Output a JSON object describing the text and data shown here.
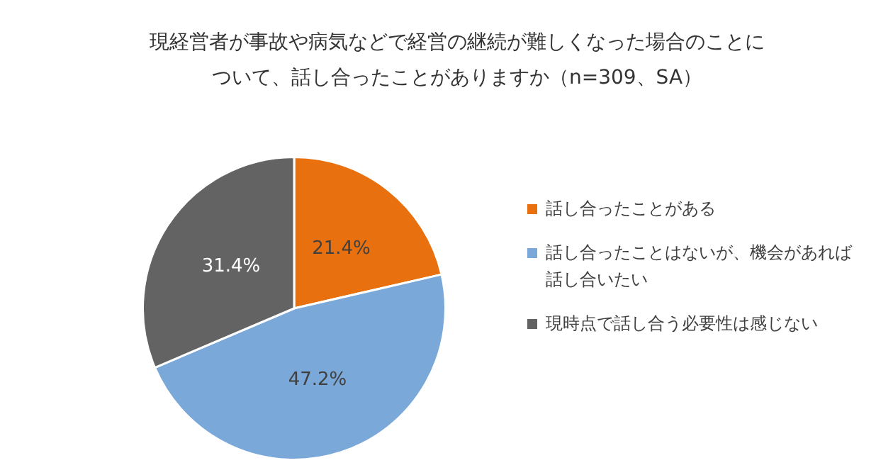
{
  "chart_data": {
    "type": "pie",
    "title": "現経営者が事故や病気などで経営の継続が難しくなった場合のことについて、話し合ったことがありますか（n=309、SA）",
    "categories": [
      "話し合ったことがある",
      "話し合ったことはないが、機会があれば話し合いたい",
      "現時点で話し合う必要性は感じない"
    ],
    "values": [
      21.4,
      47.2,
      31.4
    ],
    "colors": [
      "#e8700f",
      "#7aa8d8",
      "#636363"
    ],
    "value_labels": [
      "21.4%",
      "47.2%",
      "31.4%"
    ],
    "legend": "right"
  }
}
